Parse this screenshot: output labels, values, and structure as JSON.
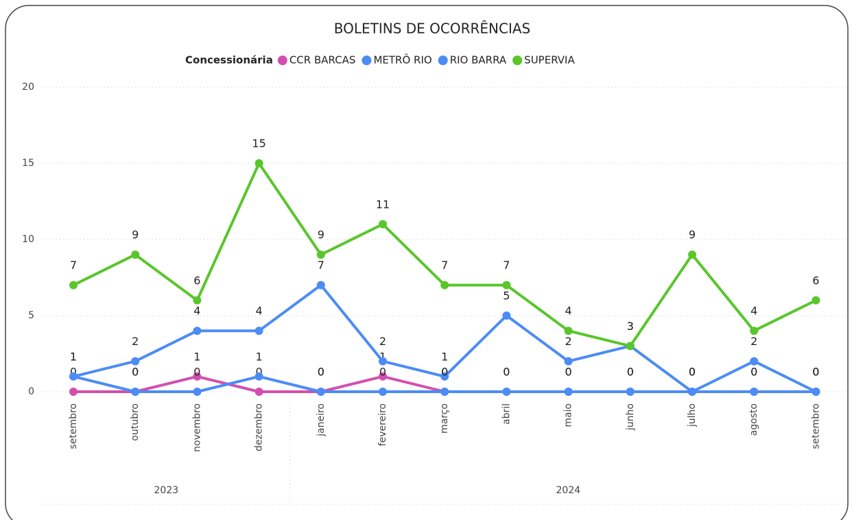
{
  "chart_data": {
    "type": "line",
    "title": "BOLETINS DE OCORRÊNCIAS",
    "legend_title": "Concessionária",
    "legend": "top",
    "categories": [
      "setembro",
      "outubro",
      "novembro",
      "dezembro",
      "janeiro",
      "fevereiro",
      "março",
      "abril",
      "maio",
      "junho",
      "julho",
      "agosto",
      "setembro"
    ],
    "years": [
      "2023",
      "2023",
      "2023",
      "2023",
      "2024",
      "2024",
      "2024",
      "2024",
      "2024",
      "2024",
      "2024",
      "2024",
      "2024"
    ],
    "ylim": [
      0,
      20
    ],
    "yticks": [
      0,
      5,
      10,
      15,
      20
    ],
    "grid": true,
    "series": [
      {
        "name": "CCR BARCAS",
        "color": "#d24fae",
        "values": [
          0,
          0,
          1,
          0,
          0,
          1,
          0,
          0,
          0,
          0,
          0,
          0,
          0
        ]
      },
      {
        "name": "METRÔ RIO",
        "color": "#4b8cf5",
        "values": [
          1,
          2,
          4,
          4,
          7,
          2,
          1,
          5,
          2,
          3,
          0,
          2,
          0
        ]
      },
      {
        "name": "RIO BARRA",
        "color": "#4b8cf5",
        "values": [
          1,
          0,
          0,
          1,
          0,
          0,
          0,
          0,
          0,
          0,
          0,
          0,
          0
        ]
      },
      {
        "name": "SUPERVIA",
        "color": "#59c62b",
        "values": [
          7,
          9,
          6,
          15,
          9,
          11,
          7,
          7,
          4,
          3,
          9,
          4,
          6
        ]
      }
    ]
  }
}
